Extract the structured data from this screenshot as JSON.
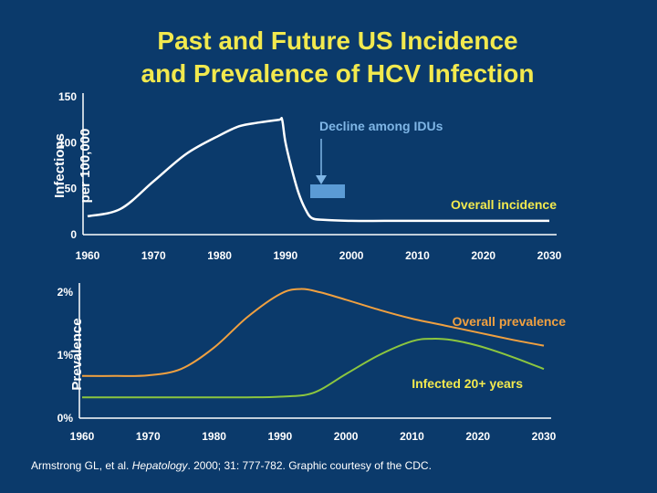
{
  "title": {
    "line1": "Past and Future US Incidence",
    "line2": "and Prevalence of HCV Infection"
  },
  "colors": {
    "background": "#0b3a6b",
    "title": "#f2e94e",
    "incidence": "#ffffff",
    "prevalence": "#f0a040",
    "infected20": "#8cc63f",
    "idu_label": "#7fb6e6",
    "idu_bar": "#5b9bd5"
  },
  "footer": {
    "prefix": "Armstrong GL, et al. ",
    "journal": "Hepatology",
    "suffix": ". 2000; 31: 777-782. Graphic courtesy of the CDC."
  },
  "chart_data": [
    {
      "type": "line",
      "ylabel_line1": "Infections",
      "ylabel_line2": "per 100,000",
      "x_ticks": [
        "1960",
        "1970",
        "1980",
        "1990",
        "2000",
        "2010",
        "2020",
        "2030"
      ],
      "y_ticks": [
        "0",
        "50",
        "100",
        "150"
      ],
      "xlim": [
        1960,
        2030
      ],
      "ylim": [
        0,
        150
      ],
      "annotations": {
        "idu": "Decline among IDUs",
        "overall_incidence": "Overall incidence"
      },
      "series": [
        {
          "key": "incidence",
          "x": [
            1960,
            1965,
            1970,
            1975,
            1980,
            1983,
            1986,
            1989,
            1989.5,
            1990,
            1991,
            1992,
            1993,
            1994,
            1996,
            2000,
            2005,
            2010,
            2020,
            2030
          ],
          "y": [
            20,
            28,
            58,
            88,
            108,
            118,
            122,
            125,
            125,
            100,
            70,
            45,
            28,
            18,
            16,
            15,
            15,
            15,
            15,
            15
          ]
        }
      ]
    },
    {
      "type": "line",
      "ylabel": "Prevalence",
      "x_ticks": [
        "1960",
        "1970",
        "1980",
        "1990",
        "2000",
        "2010",
        "2020",
        "2030"
      ],
      "y_ticks": [
        "0%",
        "1%",
        "2%"
      ],
      "xlim": [
        1960,
        2030
      ],
      "ylim": [
        0,
        2.2
      ],
      "annotations": {
        "overall_prevalence": "Overall prevalence",
        "infected_20": "Infected 20+ years"
      },
      "series": [
        {
          "key": "overall_prevalence",
          "x": [
            1960,
            1965,
            1970,
            1975,
            1980,
            1985,
            1990,
            1993,
            1996,
            2000,
            2005,
            2010,
            2015,
            2020,
            2025,
            2030
          ],
          "y": [
            0.67,
            0.67,
            0.68,
            0.78,
            1.12,
            1.6,
            1.97,
            2.05,
            2.0,
            1.88,
            1.72,
            1.58,
            1.47,
            1.36,
            1.25,
            1.15
          ]
        },
        {
          "key": "infected_20",
          "x": [
            1960,
            1965,
            1970,
            1975,
            1980,
            1985,
            1990,
            1995,
            2000,
            2005,
            2010,
            2013,
            2016,
            2020,
            2025,
            2030
          ],
          "y": [
            0.33,
            0.33,
            0.33,
            0.33,
            0.33,
            0.33,
            0.34,
            0.4,
            0.7,
            1.0,
            1.22,
            1.26,
            1.24,
            1.15,
            0.98,
            0.78
          ]
        }
      ]
    }
  ]
}
